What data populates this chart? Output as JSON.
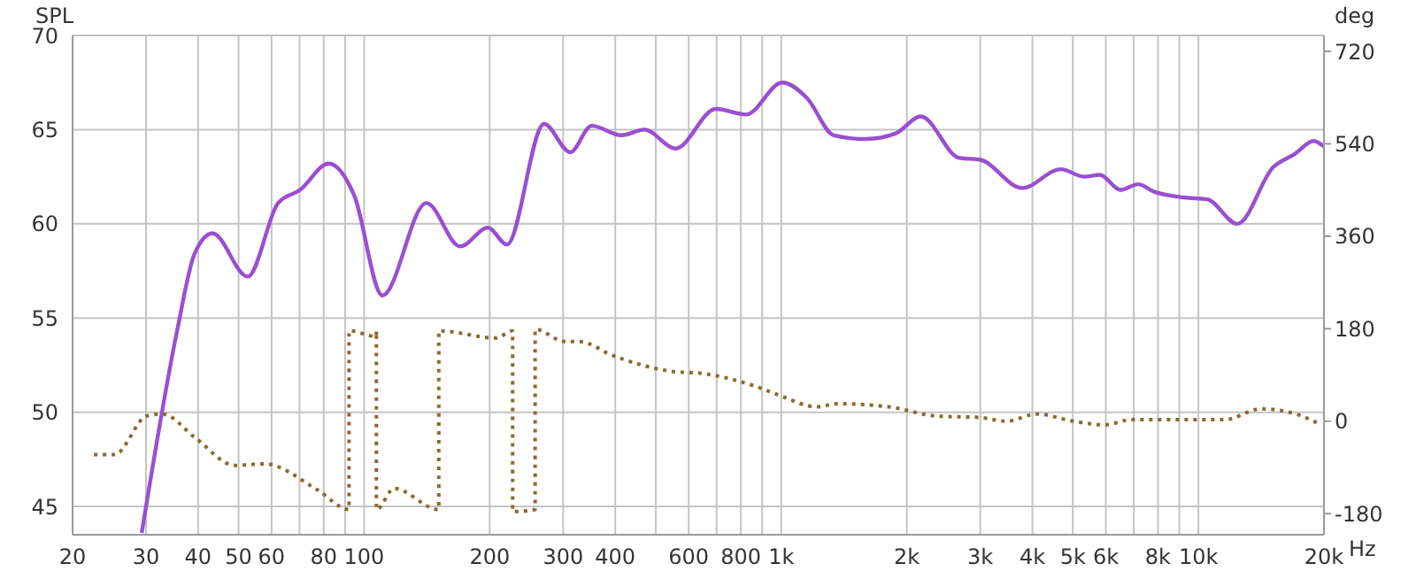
{
  "chart_data": {
    "type": "line",
    "ylabel": "SPL",
    "y2label": "deg",
    "log": "x",
    "xlabel": "Hz",
    "grid": true,
    "marker": "none",
    "xlim": [
      20,
      20000
    ],
    "xticks": [
      20,
      30,
      40,
      50,
      60,
      {
        "value": 70,
        "label": null
      },
      80,
      {
        "value": 90,
        "label": null
      },
      100,
      200,
      300,
      400,
      {
        "value": 500,
        "label": null
      },
      600,
      {
        "value": 700,
        "label": null
      },
      800,
      {
        "value": 900,
        "label": null
      },
      {
        "value": 1000,
        "label": "1k"
      },
      {
        "value": 2000,
        "label": "2k"
      },
      {
        "value": 3000,
        "label": "3k"
      },
      {
        "value": 4000,
        "label": "4k"
      },
      {
        "value": 5000,
        "label": "5k"
      },
      {
        "value": 6000,
        "label": "6k"
      },
      {
        "value": 7000,
        "label": null
      },
      {
        "value": 8000,
        "label": "8k"
      },
      {
        "value": 9000,
        "label": null
      },
      {
        "value": 10000,
        "label": "10k"
      },
      {
        "value": 20000,
        "label": "20k"
      }
    ],
    "ylim": [
      43.5,
      70
    ],
    "yticks": [
      45,
      50,
      55,
      60,
      65,
      70
    ],
    "y2lim": [
      -221,
      751
    ],
    "y2ticks": [
      -180,
      0,
      180,
      360,
      540,
      720
    ],
    "series": [
      {
        "color": "#9b4fd0",
        "line_style": "solid",
        "x": [
          29.3,
          35.6,
          39.2,
          43.3,
          52.6,
          62.2,
          70.2,
          82.2,
          94.7,
          110.6,
          141,
          170,
          198,
          220,
          270,
          312,
          351,
          414,
          470,
          558,
          697,
          823,
          1006,
          1150,
          1337,
          1595,
          1882,
          2160,
          2670,
          3000,
          3780,
          4680,
          5320,
          5800,
          6510,
          7170,
          7840,
          9240,
          10500,
          12400,
          15100,
          17000,
          18900,
          20000
        ],
        "values": [
          43.6,
          54.3,
          58.4,
          59.5,
          57.2,
          61.1,
          61.8,
          63.2,
          61.5,
          56.2,
          61.1,
          58.8,
          59.8,
          58.9,
          65.3,
          63.8,
          65.2,
          64.7,
          65.0,
          64.0,
          66.1,
          65.8,
          67.5,
          66.7,
          64.7,
          64.5,
          64.8,
          65.7,
          63.5,
          63.4,
          61.9,
          62.9,
          62.5,
          62.6,
          61.8,
          62.1,
          61.7,
          61.4,
          61.3,
          60.0,
          63.0,
          63.7,
          64.4,
          64.1
        ]
      },
      {
        "color": "#8b6a2e",
        "line_style": "dotted",
        "axis": "y2",
        "x": [
          22.5,
          25.2,
          30.1,
          32.9,
          39.2,
          49,
          57.6,
          77.4,
          92,
          92,
          107,
          107,
          107,
          118,
          151,
          151,
          207,
          227,
          227,
          257,
          257,
          303,
          328,
          394,
          546,
          645,
          860,
          978,
          1220,
          1360,
          1810,
          2360,
          3000,
          3470,
          4100,
          5010,
          5980,
          6900,
          9960,
          11580,
          14100,
          17100,
          19700
        ],
        "values": [
          -65,
          -65,
          10,
          14,
          -31,
          -86,
          -83,
          -134,
          -172,
          176,
          165,
          176,
          -172,
          -131,
          -172,
          176,
          162,
          176,
          -176,
          -172,
          179,
          155,
          155,
          128,
          97,
          93,
          69,
          52,
          28,
          34,
          28,
          10,
          7,
          0,
          14,
          0,
          -7,
          3,
          3,
          3,
          24,
          14,
          -7
        ]
      }
    ]
  }
}
